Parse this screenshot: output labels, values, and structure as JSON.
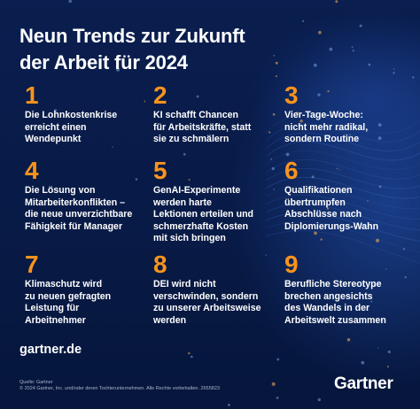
{
  "header": {
    "title_line1": "Neun Trends zur Zukunft",
    "title_line2": "der Arbeit für 2024"
  },
  "trends": [
    {
      "number": "1",
      "text": "Die Lohnkostenkrise\nerreicht einen\nWendepunkt"
    },
    {
      "number": "2",
      "text": "KI schafft Chancen\nfür Arbeitskräfte, statt\nsie zu schmälern"
    },
    {
      "number": "3",
      "text": "Vier-Tage-Woche:\nnicht mehr radikal,\nsondern Routine"
    },
    {
      "number": "4",
      "text": "Die Lösung von\nMitarbeiterkonflikten –\ndie neue unverzichtbare\nFähigkeit für Manager"
    },
    {
      "number": "5",
      "text": "GenAI-Experimente\nwerden harte\nLektionen erteilen und\nschmerzhafte Kosten\nmit sich bringen"
    },
    {
      "number": "6",
      "text": "Qualifikationen\nübertrumpfen\nAbschlüsse nach\nDiplomierungs-Wahn"
    },
    {
      "number": "7",
      "text": "Klimaschutz wird\nzu neuen gefragten\nLeistung für\nArbeitnehmer"
    },
    {
      "number": "8",
      "text": "DEI wird nicht\nverschwinden, sondern\nzu unserer Arbeitsweise\nwerden"
    },
    {
      "number": "9",
      "text": "Berufliche Stereotype\nbrechen angesichts\ndes Wandels in der\nArbeitswelt zusammen"
    }
  ],
  "footer": {
    "website": "gartner.de",
    "source": "Quelle: Gartner",
    "copyright": "© 2024 Gartner, Inc. und/oder deren Tochterunternehmen. Alle Rechte vorbehalten. 2655823",
    "logo_text": "Gartner"
  },
  "colors": {
    "background": "#0a1e4f",
    "accent_numbers": "#f7941d",
    "text": "#ffffff"
  }
}
